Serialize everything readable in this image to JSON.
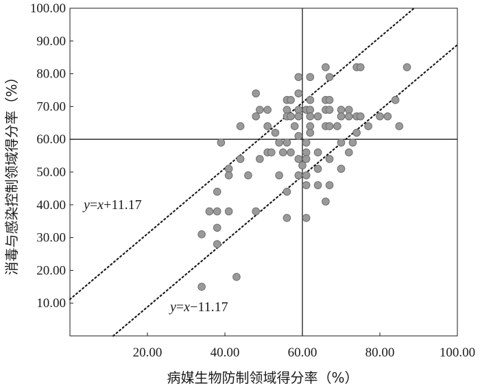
{
  "chart_data": {
    "type": "scatter",
    "xlabel": "病媒生物防制领域得分率（%）",
    "ylabel": "消毒与感染控制领域得分率（%）",
    "xlim": [
      0,
      100
    ],
    "ylim": [
      0,
      100
    ],
    "x_ticks": [
      "20.00",
      "40.00",
      "60.00",
      "80.00",
      "100.00"
    ],
    "y_ticks": [
      "10.00",
      "20.00",
      "30.00",
      "40.00",
      "50.00",
      "60.00",
      "70.00",
      "80.00",
      "90.00",
      "100.00"
    ],
    "reference_lines": {
      "vertical_x": 60,
      "horizontal_y": 60
    },
    "diagonal_lines": [
      {
        "label": "y=x+11.17",
        "intercept": 11.17,
        "style": "dotted"
      },
      {
        "label": "y=x−11.17",
        "intercept": -11.17,
        "style": "dotted"
      }
    ],
    "marker_color": "#9a9a9a",
    "marker_edge_color": "#6e6e6e",
    "grid": false,
    "points": [
      [
        34,
        31
      ],
      [
        34,
        15
      ],
      [
        36,
        38
      ],
      [
        38,
        44
      ],
      [
        38,
        38
      ],
      [
        38,
        33
      ],
      [
        38,
        28
      ],
      [
        39,
        59
      ],
      [
        41,
        51
      ],
      [
        41,
        49
      ],
      [
        41,
        38
      ],
      [
        43,
        18
      ],
      [
        44,
        54
      ],
      [
        44,
        64
      ],
      [
        46,
        49
      ],
      [
        48,
        74
      ],
      [
        48,
        67
      ],
      [
        48,
        38
      ],
      [
        49,
        69
      ],
      [
        49,
        54
      ],
      [
        51,
        69
      ],
      [
        51,
        64
      ],
      [
        51,
        56
      ],
      [
        52,
        56
      ],
      [
        53,
        62
      ],
      [
        54,
        59
      ],
      [
        54,
        49
      ],
      [
        55,
        56
      ],
      [
        56,
        72
      ],
      [
        56,
        69
      ],
      [
        56,
        67
      ],
      [
        56,
        59
      ],
      [
        56,
        44
      ],
      [
        56,
        36
      ],
      [
        57,
        72
      ],
      [
        57,
        67
      ],
      [
        57,
        56
      ],
      [
        58,
        64
      ],
      [
        59,
        79
      ],
      [
        59,
        74
      ],
      [
        59,
        69
      ],
      [
        59,
        67
      ],
      [
        59,
        61
      ],
      [
        59,
        54
      ],
      [
        59,
        49
      ],
      [
        60,
        52
      ],
      [
        61,
        69
      ],
      [
        61,
        59
      ],
      [
        61,
        56
      ],
      [
        61,
        54
      ],
      [
        61,
        49
      ],
      [
        61,
        46
      ],
      [
        61,
        36
      ],
      [
        62,
        79
      ],
      [
        62,
        72
      ],
      [
        62,
        69
      ],
      [
        62,
        67
      ],
      [
        62,
        64
      ],
      [
        62,
        62
      ],
      [
        64,
        67
      ],
      [
        64,
        56
      ],
      [
        64,
        51
      ],
      [
        64,
        46
      ],
      [
        66,
        82
      ],
      [
        66,
        72
      ],
      [
        66,
        69
      ],
      [
        66,
        64
      ],
      [
        66,
        41
      ],
      [
        67,
        79
      ],
      [
        67,
        72
      ],
      [
        67,
        69
      ],
      [
        67,
        64
      ],
      [
        67,
        54
      ],
      [
        67,
        46
      ],
      [
        69,
        64
      ],
      [
        70,
        69
      ],
      [
        70,
        67
      ],
      [
        70,
        59
      ],
      [
        70,
        51
      ],
      [
        72,
        69
      ],
      [
        72,
        67
      ],
      [
        72,
        56
      ],
      [
        73,
        59
      ],
      [
        74,
        82
      ],
      [
        74,
        67
      ],
      [
        74,
        62
      ],
      [
        75,
        82
      ],
      [
        75,
        67
      ],
      [
        77,
        64
      ],
      [
        80,
        67
      ],
      [
        82,
        67
      ],
      [
        84,
        72
      ],
      [
        85,
        64
      ],
      [
        87,
        82
      ]
    ]
  }
}
